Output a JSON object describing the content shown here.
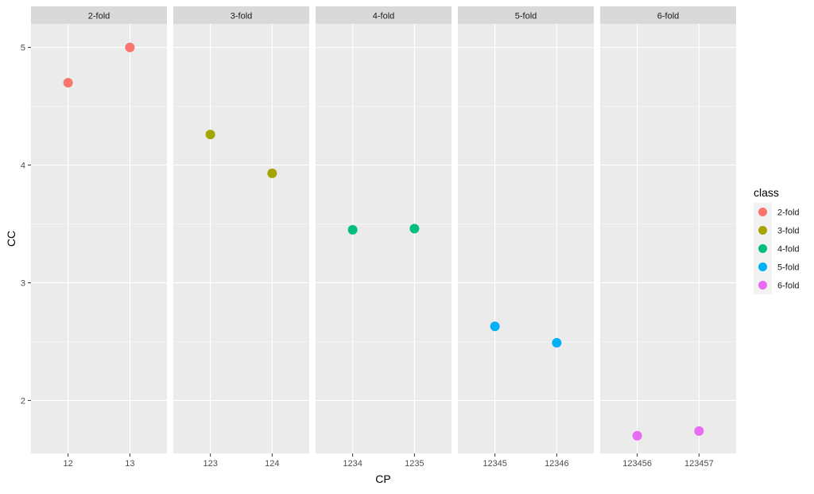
{
  "chart_data": {
    "type": "scatter",
    "facet_layout": "columns",
    "xlabel": "CP",
    "ylabel": "CC",
    "ylim": [
      1.55,
      5.2
    ],
    "y_ticks": [
      2,
      3,
      4,
      5
    ],
    "grid": true,
    "legend": {
      "title": "class",
      "placement": "right"
    },
    "panels": [
      {
        "strip": "2-fold",
        "series": "2-fold",
        "color": "#F8766D",
        "categories": [
          "12",
          "13"
        ],
        "values": [
          4.7,
          5.0
        ]
      },
      {
        "strip": "3-fold",
        "series": "3-fold",
        "color": "#A3A500",
        "categories": [
          "123",
          "124"
        ],
        "values": [
          4.26,
          3.93
        ]
      },
      {
        "strip": "4-fold",
        "series": "4-fold",
        "color": "#00BF7D",
        "categories": [
          "1234",
          "1235"
        ],
        "values": [
          3.45,
          3.46
        ]
      },
      {
        "strip": "5-fold",
        "series": "5-fold",
        "color": "#00B0F6",
        "categories": [
          "12345",
          "12346"
        ],
        "values": [
          2.63,
          2.49
        ]
      },
      {
        "strip": "6-fold",
        "series": "6-fold",
        "color": "#E76BF3",
        "categories": [
          "123456",
          "123457"
        ],
        "values": [
          1.7,
          1.74
        ]
      }
    ]
  },
  "colors": {
    "panel_bg": "#EBEBEB",
    "strip_bg": "#D9D9D9",
    "grid_major": "#FFFFFF",
    "axis_text": "#4D4D4D",
    "title_text": "#000000",
    "strip_text": "#1A1A1A"
  }
}
